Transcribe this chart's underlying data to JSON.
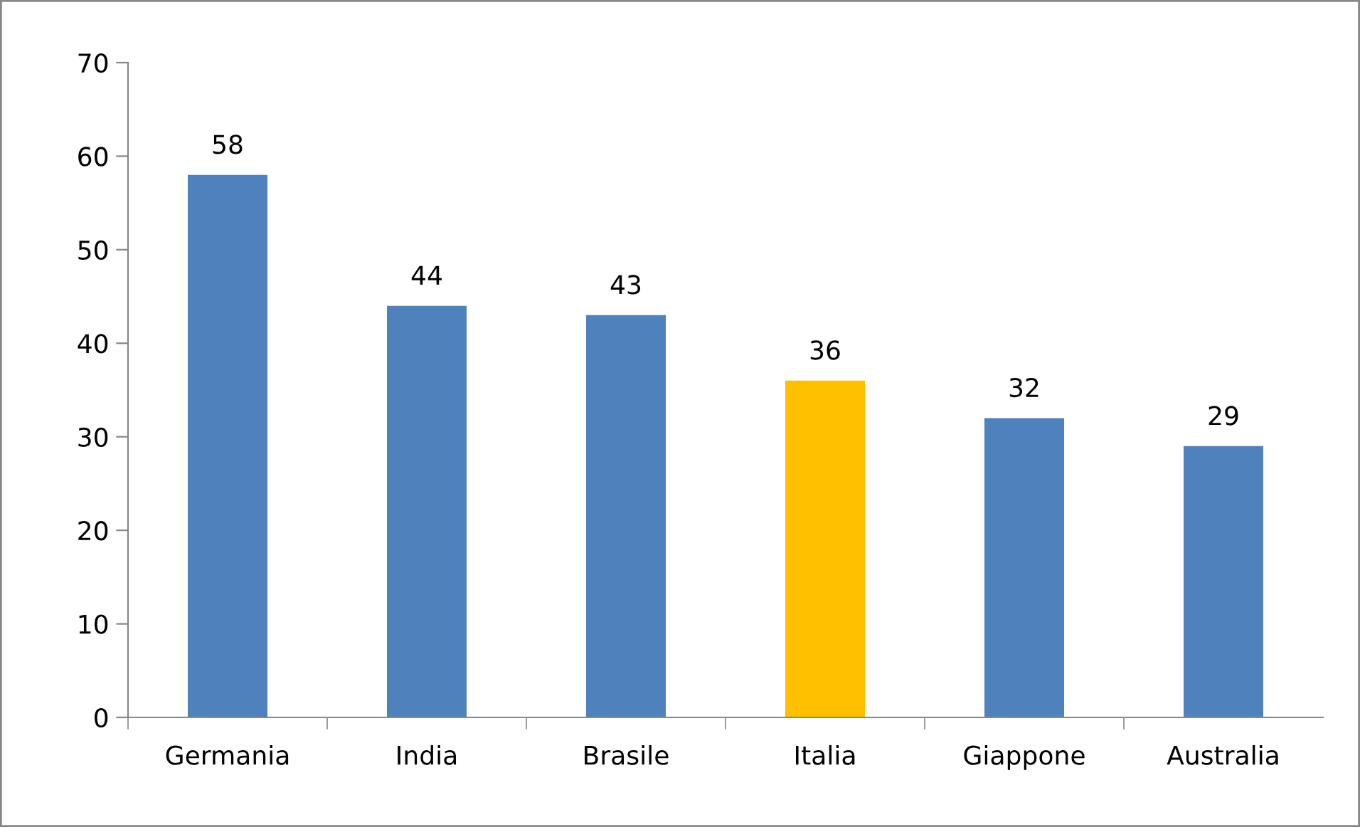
{
  "chart_data": {
    "type": "bar",
    "categories": [
      "Germania",
      "India",
      "Brasile",
      "Italia",
      "Giappone",
      "Australia"
    ],
    "values": [
      58,
      44,
      43,
      36,
      32,
      29
    ],
    "colors": [
      "#4f81bd",
      "#4f81bd",
      "#4f81bd",
      "#ffc000",
      "#4f81bd",
      "#4f81bd"
    ],
    "ylim": [
      0,
      70
    ],
    "yticks": [
      0,
      10,
      20,
      30,
      40,
      50,
      60,
      70
    ],
    "grid": false,
    "legend": false,
    "data_labels": true
  }
}
